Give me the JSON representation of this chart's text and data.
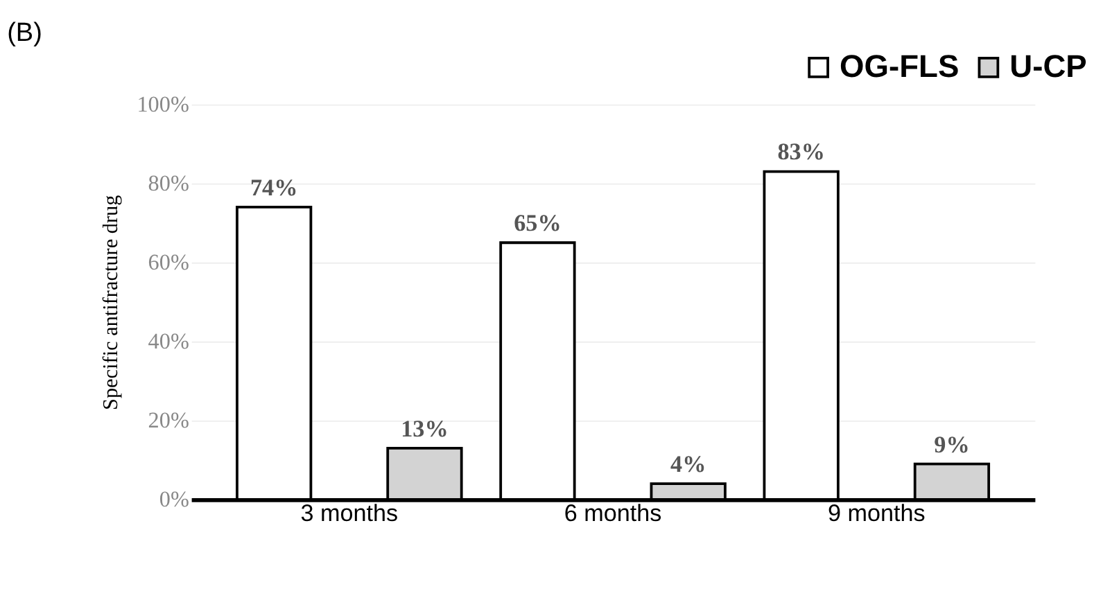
{
  "chart_data": {
    "type": "bar",
    "title": "(B)",
    "ylabel": "Specific antifracture drug",
    "categories": [
      "3 months",
      "6 months",
      "9 months"
    ],
    "series": [
      {
        "name": "OG-FLS",
        "color": "#ffffff",
        "values": [
          74,
          65,
          83
        ],
        "value_labels": [
          "74%",
          "65%",
          "83%"
        ]
      },
      {
        "name": "U-CP",
        "color": "#d3d3d3",
        "values": [
          13,
          4,
          9
        ],
        "value_labels": [
          "13%",
          "4%",
          "9%"
        ]
      }
    ],
    "ylim": [
      0,
      100
    ],
    "yticks": [
      {
        "value": 0,
        "label": "0%"
      },
      {
        "value": 20,
        "label": "20%"
      },
      {
        "value": 40,
        "label": "40%"
      },
      {
        "value": 60,
        "label": "60%"
      },
      {
        "value": 80,
        "label": "80%"
      },
      {
        "value": 100,
        "label": "100%"
      }
    ],
    "grid": "y",
    "legend": "top right"
  }
}
